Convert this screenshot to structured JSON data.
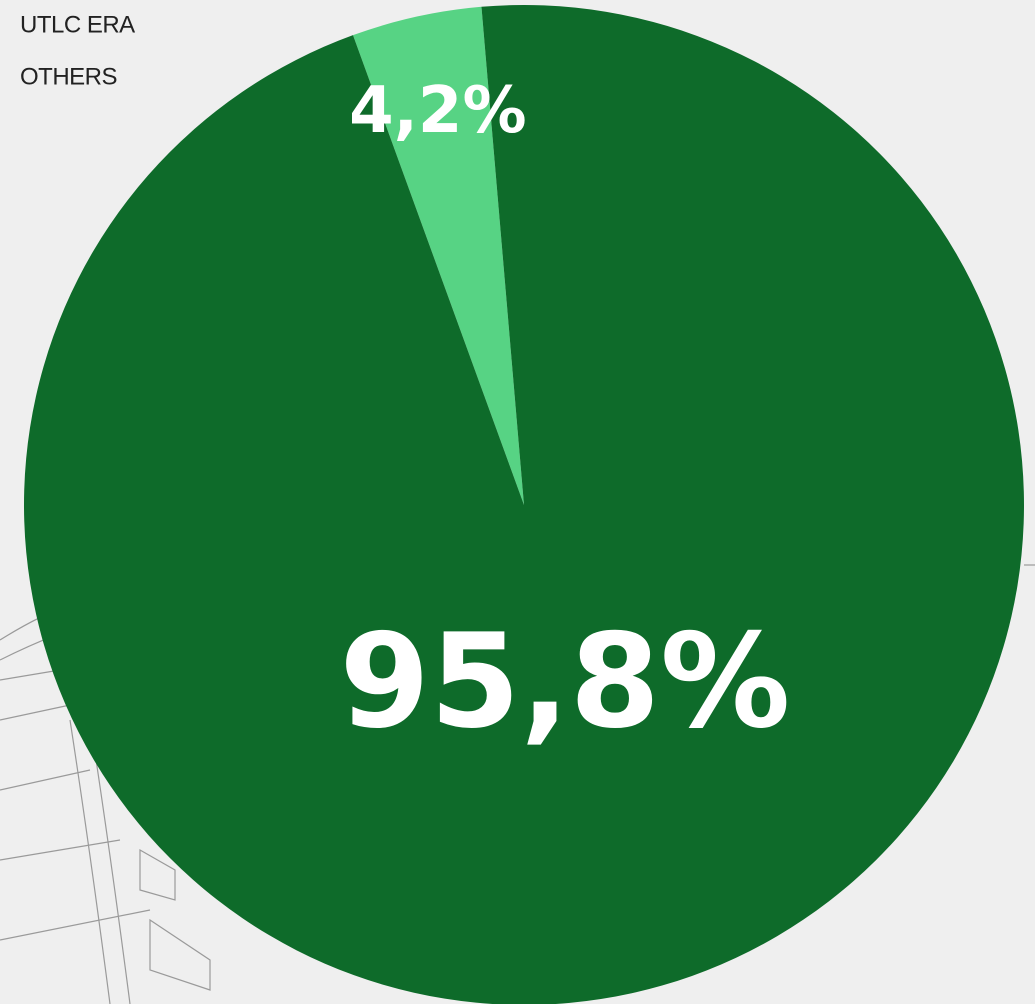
{
  "chart_data": {
    "type": "pie",
    "categories": [
      "UTLC ERA",
      "OTHERS"
    ],
    "values": [
      95.8,
      4.2
    ],
    "value_labels": [
      "95,8%",
      "4,2%"
    ],
    "colors": [
      "#0e6b2a",
      "#57d384"
    ]
  }
}
